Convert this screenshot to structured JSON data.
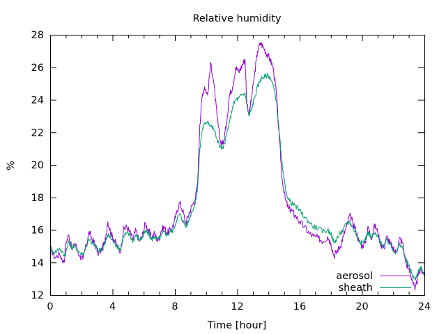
{
  "chart_data": {
    "type": "line",
    "title": "Relative humidity",
    "xlabel": "Time [hour]",
    "ylabel": "%",
    "xlim": [
      0,
      24
    ],
    "ylim": [
      12,
      28
    ],
    "xticks": [
      0,
      4,
      8,
      12,
      16,
      20,
      24
    ],
    "xminor_step": 1,
    "yticks": [
      12,
      14,
      16,
      18,
      20,
      22,
      24,
      26,
      28
    ],
    "grid": false,
    "legend_position": "bottom-right",
    "series": [
      {
        "name": "aerosol",
        "color": "#9400d3",
        "points": [
          [
            0,
            14.9
          ],
          [
            0.3,
            14.3
          ],
          [
            0.6,
            14.5
          ],
          [
            0.9,
            14.0
          ],
          [
            1.0,
            15.2
          ],
          [
            1.2,
            15.7
          ],
          [
            1.4,
            14.8
          ],
          [
            1.6,
            15.2
          ],
          [
            1.9,
            14.4
          ],
          [
            2.1,
            14.2
          ],
          [
            2.3,
            15.0
          ],
          [
            2.5,
            15.9
          ],
          [
            2.7,
            15.4
          ],
          [
            2.9,
            15.1
          ],
          [
            3.1,
            14.5
          ],
          [
            3.3,
            14.8
          ],
          [
            3.5,
            15.2
          ],
          [
            3.7,
            16.5
          ],
          [
            3.9,
            15.8
          ],
          [
            4.1,
            15.4
          ],
          [
            4.3,
            15.0
          ],
          [
            4.5,
            14.6
          ],
          [
            4.7,
            16.0
          ],
          [
            4.9,
            16.2
          ],
          [
            5.1,
            15.9
          ],
          [
            5.3,
            15.4
          ],
          [
            5.5,
            16.0
          ],
          [
            5.7,
            15.3
          ],
          [
            5.9,
            15.6
          ],
          [
            6.1,
            16.4
          ],
          [
            6.3,
            16.0
          ],
          [
            6.5,
            15.5
          ],
          [
            6.7,
            15.8
          ],
          [
            6.9,
            15.3
          ],
          [
            7.1,
            15.9
          ],
          [
            7.3,
            16.2
          ],
          [
            7.5,
            15.8
          ],
          [
            7.7,
            16.0
          ],
          [
            7.9,
            16.3
          ],
          [
            8.1,
            17.0
          ],
          [
            8.3,
            17.7
          ],
          [
            8.5,
            17.2
          ],
          [
            8.7,
            16.4
          ],
          [
            8.9,
            17.0
          ],
          [
            9.1,
            17.5
          ],
          [
            9.3,
            17.9
          ],
          [
            9.45,
            18.8
          ],
          [
            9.6,
            22.5
          ],
          [
            9.75,
            24.3
          ],
          [
            9.9,
            24.8
          ],
          [
            10.1,
            24.3
          ],
          [
            10.3,
            26.3
          ],
          [
            10.5,
            25.0
          ],
          [
            10.7,
            23.0
          ],
          [
            10.9,
            21.5
          ],
          [
            11.1,
            21.3
          ],
          [
            11.3,
            22.5
          ],
          [
            11.5,
            24.3
          ],
          [
            11.7,
            24.8
          ],
          [
            11.9,
            26.0
          ],
          [
            12.1,
            25.7
          ],
          [
            12.3,
            26.1
          ],
          [
            12.5,
            26.5
          ],
          [
            12.6,
            24.0
          ],
          [
            12.75,
            23.1
          ],
          [
            12.9,
            24.0
          ],
          [
            13.1,
            25.5
          ],
          [
            13.3,
            27.0
          ],
          [
            13.5,
            27.5
          ],
          [
            13.7,
            27.2
          ],
          [
            13.9,
            26.8
          ],
          [
            14.1,
            26.5
          ],
          [
            14.3,
            26.0
          ],
          [
            14.5,
            24.5
          ],
          [
            14.7,
            21.5
          ],
          [
            14.9,
            19.0
          ],
          [
            15.1,
            17.8
          ],
          [
            15.3,
            17.3
          ],
          [
            15.5,
            17.2
          ],
          [
            15.7,
            16.9
          ],
          [
            16.0,
            16.5
          ],
          [
            16.3,
            16.2
          ],
          [
            16.6,
            15.8
          ],
          [
            16.9,
            15.6
          ],
          [
            17.2,
            15.5
          ],
          [
            17.5,
            15.3
          ],
          [
            17.8,
            15.6
          ],
          [
            18.0,
            15.2
          ],
          [
            18.2,
            14.4
          ],
          [
            18.4,
            14.7
          ],
          [
            18.6,
            15.0
          ],
          [
            18.8,
            15.6
          ],
          [
            19.0,
            16.2
          ],
          [
            19.2,
            16.9
          ],
          [
            19.4,
            16.5
          ],
          [
            19.6,
            16.0
          ],
          [
            19.8,
            15.3
          ],
          [
            20.0,
            15.0
          ],
          [
            20.2,
            15.2
          ],
          [
            20.4,
            16.2
          ],
          [
            20.6,
            15.5
          ],
          [
            20.8,
            16.3
          ],
          [
            21.0,
            15.9
          ],
          [
            21.2,
            15.1
          ],
          [
            21.4,
            14.9
          ],
          [
            21.6,
            15.6
          ],
          [
            21.8,
            15.2
          ],
          [
            22.0,
            14.8
          ],
          [
            22.2,
            14.6
          ],
          [
            22.4,
            15.5
          ],
          [
            22.6,
            15.2
          ],
          [
            22.8,
            14.0
          ],
          [
            23.0,
            13.6
          ],
          [
            23.2,
            13.0
          ],
          [
            23.4,
            12.3
          ],
          [
            23.6,
            13.2
          ],
          [
            23.8,
            13.6
          ],
          [
            24.0,
            13.2
          ]
        ]
      },
      {
        "name": "sheath",
        "color": "#009e73",
        "points": [
          [
            0,
            14.8
          ],
          [
            0.3,
            14.6
          ],
          [
            0.6,
            14.9
          ],
          [
            0.9,
            14.4
          ],
          [
            1.0,
            14.6
          ],
          [
            1.2,
            15.3
          ],
          [
            1.4,
            14.9
          ],
          [
            1.6,
            15.0
          ],
          [
            1.9,
            14.6
          ],
          [
            2.1,
            14.5
          ],
          [
            2.3,
            15.0
          ],
          [
            2.5,
            15.4
          ],
          [
            2.7,
            15.2
          ],
          [
            2.9,
            15.0
          ],
          [
            3.1,
            14.7
          ],
          [
            3.3,
            14.9
          ],
          [
            3.5,
            15.1
          ],
          [
            3.7,
            15.7
          ],
          [
            3.9,
            15.5
          ],
          [
            4.1,
            15.2
          ],
          [
            4.3,
            15.0
          ],
          [
            4.5,
            14.8
          ],
          [
            4.7,
            15.6
          ],
          [
            4.9,
            15.8
          ],
          [
            5.1,
            15.7
          ],
          [
            5.3,
            15.3
          ],
          [
            5.5,
            15.7
          ],
          [
            5.7,
            15.4
          ],
          [
            5.9,
            15.5
          ],
          [
            6.1,
            15.9
          ],
          [
            6.3,
            15.8
          ],
          [
            6.5,
            15.4
          ],
          [
            6.7,
            15.6
          ],
          [
            6.9,
            15.4
          ],
          [
            7.1,
            15.6
          ],
          [
            7.3,
            15.9
          ],
          [
            7.5,
            15.7
          ],
          [
            7.7,
            15.9
          ],
          [
            7.9,
            16.0
          ],
          [
            8.1,
            16.6
          ],
          [
            8.3,
            17.0
          ],
          [
            8.5,
            16.6
          ],
          [
            8.7,
            16.2
          ],
          [
            8.9,
            16.6
          ],
          [
            9.1,
            17.2
          ],
          [
            9.3,
            17.6
          ],
          [
            9.45,
            18.6
          ],
          [
            9.6,
            21.0
          ],
          [
            9.75,
            22.2
          ],
          [
            9.9,
            22.5
          ],
          [
            10.1,
            22.7
          ],
          [
            10.3,
            22.4
          ],
          [
            10.5,
            22.2
          ],
          [
            10.7,
            21.6
          ],
          [
            10.9,
            21.1
          ],
          [
            11.1,
            21.0
          ],
          [
            11.3,
            21.8
          ],
          [
            11.5,
            22.6
          ],
          [
            11.7,
            23.6
          ],
          [
            11.9,
            24.0
          ],
          [
            12.1,
            24.1
          ],
          [
            12.3,
            24.3
          ],
          [
            12.5,
            24.4
          ],
          [
            12.6,
            23.8
          ],
          [
            12.75,
            23.0
          ],
          [
            12.9,
            23.4
          ],
          [
            13.1,
            24.1
          ],
          [
            13.3,
            24.8
          ],
          [
            13.5,
            25.3
          ],
          [
            13.7,
            25.4
          ],
          [
            13.9,
            25.5
          ],
          [
            14.1,
            25.4
          ],
          [
            14.3,
            24.9
          ],
          [
            14.5,
            24.0
          ],
          [
            14.7,
            21.9
          ],
          [
            14.9,
            19.8
          ],
          [
            15.1,
            18.4
          ],
          [
            15.3,
            17.9
          ],
          [
            15.5,
            17.6
          ],
          [
            15.7,
            17.5
          ],
          [
            16.0,
            17.2
          ],
          [
            16.3,
            16.8
          ],
          [
            16.6,
            16.5
          ],
          [
            16.9,
            16.2
          ],
          [
            17.2,
            16.1
          ],
          [
            17.5,
            15.9
          ],
          [
            17.8,
            16.0
          ],
          [
            18.0,
            15.8
          ],
          [
            18.2,
            15.2
          ],
          [
            18.4,
            15.5
          ],
          [
            18.6,
            15.8
          ],
          [
            18.8,
            16.0
          ],
          [
            19.0,
            16.4
          ],
          [
            19.2,
            16.5
          ],
          [
            19.4,
            16.2
          ],
          [
            19.6,
            15.8
          ],
          [
            19.8,
            15.4
          ],
          [
            20.0,
            15.2
          ],
          [
            20.2,
            15.4
          ],
          [
            20.4,
            15.9
          ],
          [
            20.6,
            15.5
          ],
          [
            20.8,
            15.8
          ],
          [
            21.0,
            15.6
          ],
          [
            21.2,
            15.2
          ],
          [
            21.4,
            15.0
          ],
          [
            21.6,
            15.4
          ],
          [
            21.8,
            15.1
          ],
          [
            22.0,
            14.8
          ],
          [
            22.2,
            14.6
          ],
          [
            22.4,
            15.1
          ],
          [
            22.6,
            14.9
          ],
          [
            22.8,
            14.2
          ],
          [
            23.0,
            13.8
          ],
          [
            23.2,
            13.3
          ],
          [
            23.4,
            12.9
          ],
          [
            23.6,
            13.5
          ],
          [
            23.8,
            13.7
          ],
          [
            24.0,
            13.2
          ]
        ]
      }
    ]
  }
}
